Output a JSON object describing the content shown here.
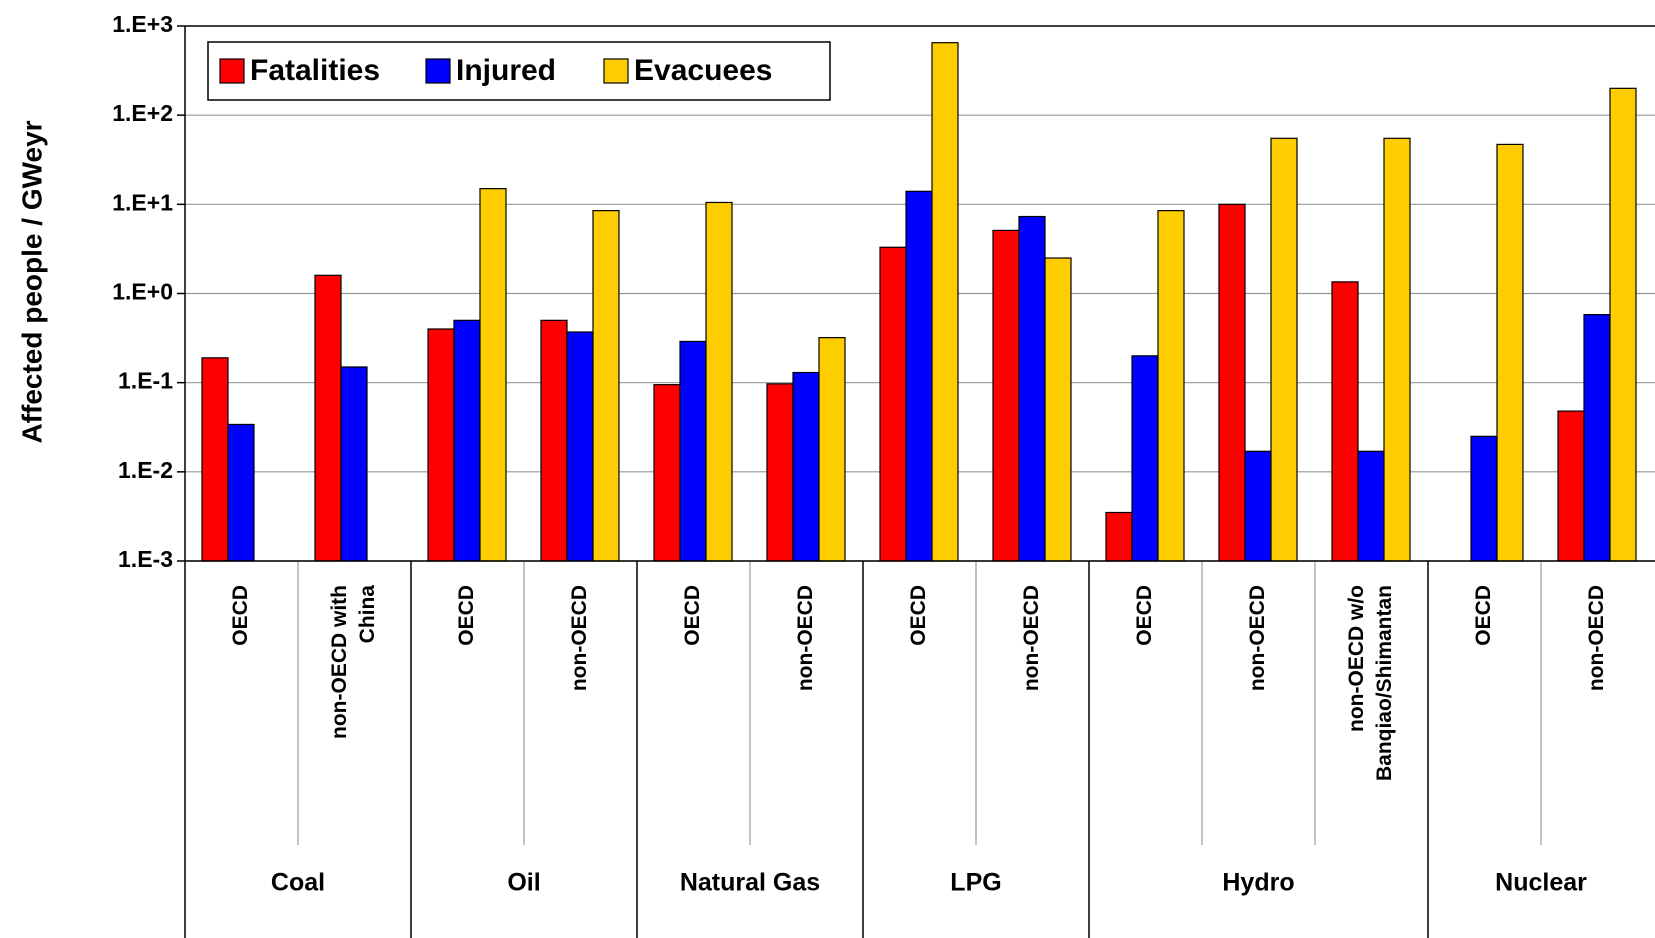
{
  "chart_data": {
    "type": "bar",
    "y_label": "Affected people / GWeyr",
    "log_scale": true,
    "grid": true,
    "legend": "top-left",
    "ylim": [
      0.001,
      1000
    ],
    "yticks": [
      {
        "value": 0.001,
        "label": "1.E-3"
      },
      {
        "value": 0.01,
        "label": "1.E-2"
      },
      {
        "value": 0.1,
        "label": "1.E-1"
      },
      {
        "value": 1,
        "label": "1.E+0"
      },
      {
        "value": 10,
        "label": "1.E+1"
      },
      {
        "value": 100,
        "label": "1.E+2"
      },
      {
        "value": 1000,
        "label": "1.E+3"
      }
    ],
    "groups": [
      {
        "name": "Coal",
        "categories": [
          [
            "OECD"
          ],
          [
            "non-OECD with",
            "China"
          ]
        ]
      },
      {
        "name": "Oil",
        "categories": [
          [
            "OECD"
          ],
          [
            "non-OECD"
          ]
        ]
      },
      {
        "name": "Natural Gas",
        "categories": [
          [
            "OECD"
          ],
          [
            "non-OECD"
          ]
        ]
      },
      {
        "name": "LPG",
        "categories": [
          [
            "OECD"
          ],
          [
            "non-OECD"
          ]
        ]
      },
      {
        "name": "Hydro",
        "categories": [
          [
            "OECD"
          ],
          [
            "non-OECD"
          ],
          [
            "non-OECD w/o",
            "Banqiao/Shimantan"
          ]
        ]
      },
      {
        "name": "Nuclear",
        "categories": [
          [
            "OECD"
          ],
          [
            "non-OECD"
          ]
        ]
      }
    ],
    "series": [
      {
        "name": "Fatalities",
        "color": "#ff0000",
        "values": [
          0.19,
          1.6,
          0.4,
          0.5,
          0.095,
          0.097,
          3.3,
          5.1,
          0.0035,
          10,
          1.35,
          null,
          0.048
        ]
      },
      {
        "name": "Injured",
        "color": "#0000ff",
        "values": [
          0.034,
          0.15,
          0.5,
          0.37,
          0.29,
          0.13,
          14,
          7.3,
          0.2,
          0.017,
          0.017,
          0.025,
          0.58
        ]
      },
      {
        "name": "Evacuees",
        "color": "#ffcc00",
        "values": [
          null,
          null,
          15,
          8.5,
          10.5,
          0.32,
          650,
          2.5,
          8.5,
          55,
          55,
          47,
          200
        ]
      }
    ]
  }
}
